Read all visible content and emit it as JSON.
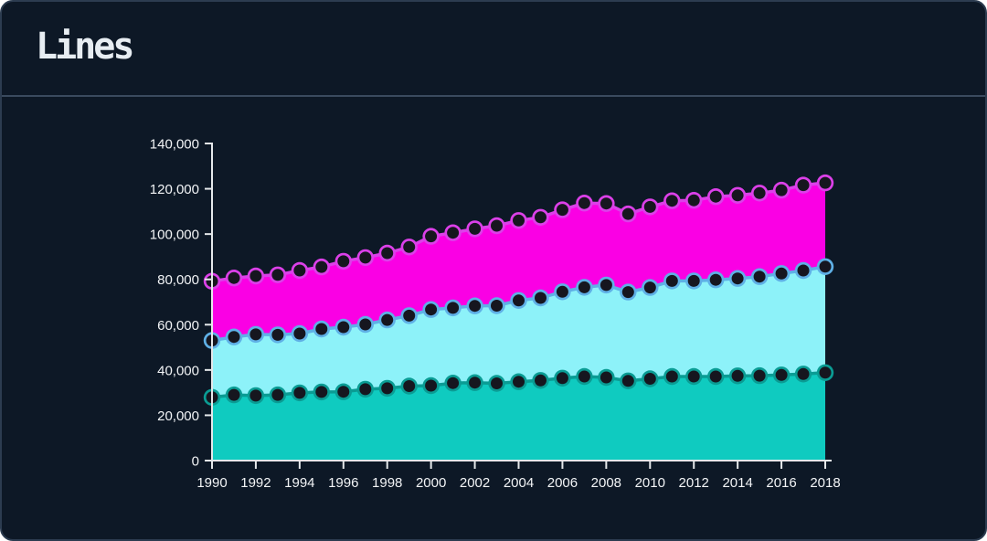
{
  "card": {
    "title": "Lines"
  },
  "chart_data": {
    "type": "area",
    "title": "Lines",
    "x": [
      1990,
      1991,
      1992,
      1993,
      1994,
      1995,
      1996,
      1997,
      1998,
      1999,
      2000,
      2001,
      2002,
      2003,
      2004,
      2005,
      2006,
      2007,
      2008,
      2009,
      2010,
      2011,
      2012,
      2013,
      2014,
      2015,
      2016,
      2017,
      2018
    ],
    "series": [
      {
        "name": "magenta",
        "values": [
          79200,
          80600,
          81500,
          82000,
          83900,
          85500,
          88000,
          89600,
          91600,
          94300,
          99000,
          100600,
          102300,
          103700,
          106000,
          107400,
          110700,
          113700,
          113500,
          108900,
          112000,
          114700,
          114900,
          116500,
          117100,
          118100,
          119400,
          121600,
          122600
        ]
      },
      {
        "name": "cyan",
        "values": [
          53000,
          54600,
          55700,
          55500,
          56100,
          58100,
          58900,
          60100,
          62100,
          64000,
          66700,
          67400,
          68300,
          68400,
          70700,
          71800,
          74500,
          76500,
          77500,
          74400,
          76400,
          79300,
          79300,
          79800,
          80400,
          81200,
          82600,
          83900,
          85600
        ]
      },
      {
        "name": "teal",
        "values": [
          27900,
          29000,
          28700,
          29000,
          29900,
          30300,
          30400,
          31500,
          31900,
          32900,
          33100,
          34200,
          34400,
          34100,
          34800,
          35400,
          36400,
          37100,
          36700,
          35200,
          36100,
          37100,
          37100,
          37100,
          37400,
          37500,
          37800,
          38200,
          38800
        ]
      }
    ],
    "ylim": [
      0,
      140000
    ],
    "ytick_step": 20000,
    "xtick_step": 2,
    "grid": false,
    "legend": "none",
    "marker_style": "black-dot-with-colored-ring",
    "area_baseline": 0
  },
  "colors": {
    "card_bg": "#0D1826",
    "card_border": "#2C3C50",
    "divider": "#3A4A5E",
    "title_text": "#E7EDF2",
    "axis": "#E5E8EA",
    "tick_label": "#F2F4F6",
    "point_dot": "#16161F",
    "series": {
      "magenta": {
        "fill": "#FA00E4",
        "stroke": "#DC40E9"
      },
      "cyan": {
        "fill": "#8DF2F9",
        "stroke": "#5FB0E6"
      },
      "teal": {
        "fill": "#0FCBC0",
        "stroke": "#0A9C94"
      }
    }
  }
}
